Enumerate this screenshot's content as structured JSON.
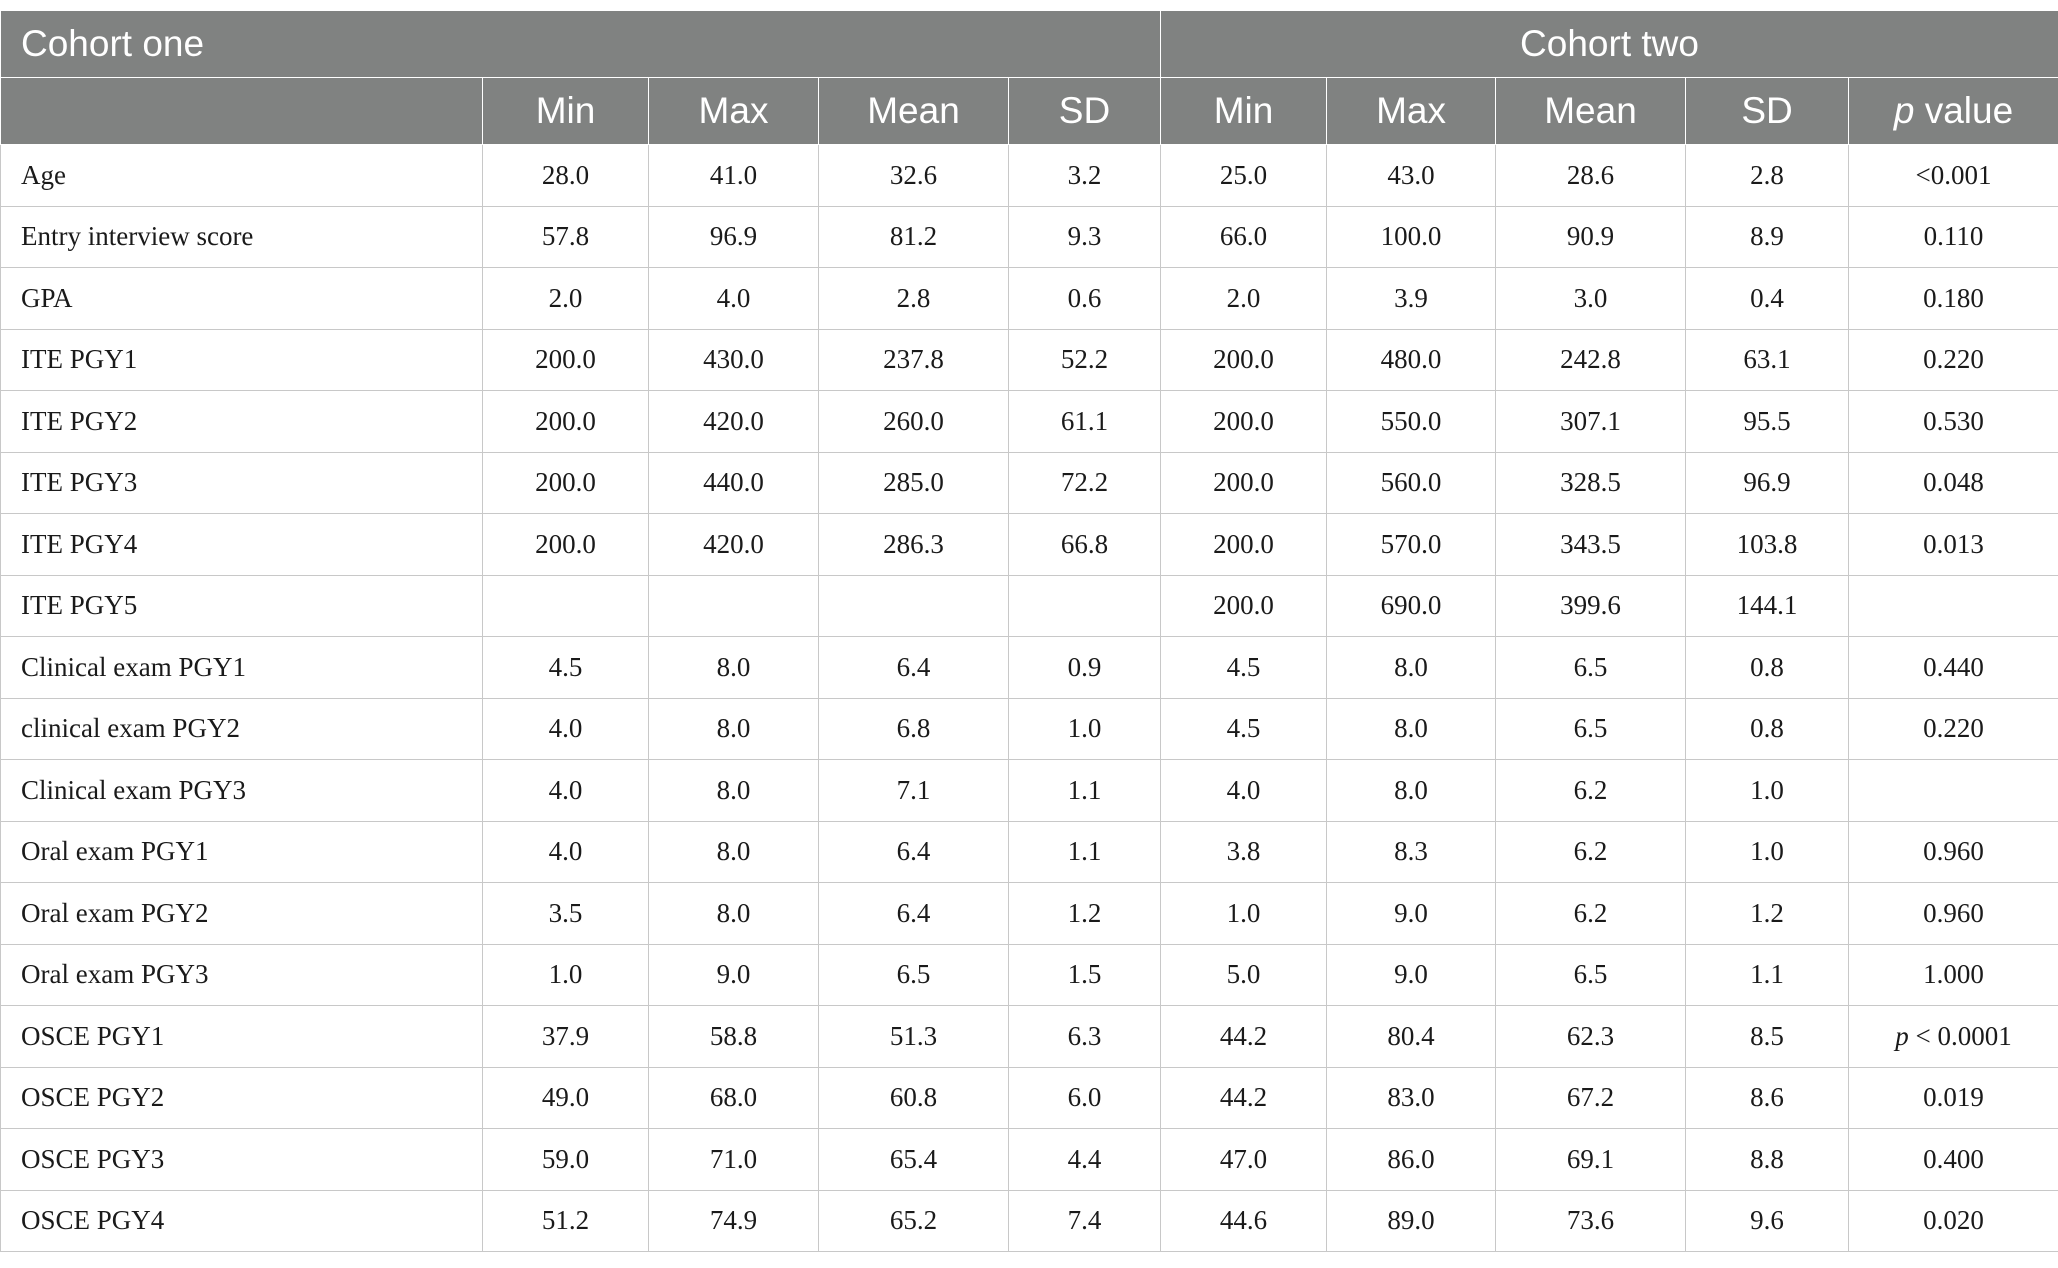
{
  "header": {
    "cohort_one": "Cohort one",
    "cohort_two": "Cohort two",
    "columns": [
      "Min",
      "Max",
      "Mean",
      "SD",
      "Min",
      "Max",
      "Mean",
      "SD"
    ],
    "p_value_prefix": "p",
    "p_value_suffix": " value"
  },
  "rows": [
    {
      "label": "Age",
      "values": [
        "28.0",
        "41.0",
        "32.6",
        "3.2",
        "25.0",
        "43.0",
        "28.6",
        "2.8"
      ],
      "p": "<0.001"
    },
    {
      "label": "Entry interview score",
      "values": [
        "57.8",
        "96.9",
        "81.2",
        "9.3",
        "66.0",
        "100.0",
        "90.9",
        "8.9"
      ],
      "p": "0.110"
    },
    {
      "label": "GPA",
      "values": [
        "2.0",
        "4.0",
        "2.8",
        "0.6",
        "2.0",
        "3.9",
        "3.0",
        "0.4"
      ],
      "p": "0.180"
    },
    {
      "label": "ITE PGY1",
      "values": [
        "200.0",
        "430.0",
        "237.8",
        "52.2",
        "200.0",
        "480.0",
        "242.8",
        "63.1"
      ],
      "p": "0.220"
    },
    {
      "label": "ITE PGY2",
      "values": [
        "200.0",
        "420.0",
        "260.0",
        "61.1",
        "200.0",
        "550.0",
        "307.1",
        "95.5"
      ],
      "p": "0.530"
    },
    {
      "label": "ITE PGY3",
      "values": [
        "200.0",
        "440.0",
        "285.0",
        "72.2",
        "200.0",
        "560.0",
        "328.5",
        "96.9"
      ],
      "p": "0.048"
    },
    {
      "label": "ITE PGY4",
      "values": [
        "200.0",
        "420.0",
        "286.3",
        "66.8",
        "200.0",
        "570.0",
        "343.5",
        "103.8"
      ],
      "p": "0.013"
    },
    {
      "label": "ITE PGY5",
      "values": [
        "",
        "",
        "",
        "",
        "200.0",
        "690.0",
        "399.6",
        "144.1"
      ],
      "p": ""
    },
    {
      "label": "Clinical exam PGY1",
      "values": [
        "4.5",
        "8.0",
        "6.4",
        "0.9",
        "4.5",
        "8.0",
        "6.5",
        "0.8"
      ],
      "p": "0.440"
    },
    {
      "label": "clinical exam PGY2",
      "values": [
        "4.0",
        "8.0",
        "6.8",
        "1.0",
        "4.5",
        "8.0",
        "6.5",
        "0.8"
      ],
      "p": "0.220"
    },
    {
      "label": "Clinical exam PGY3",
      "values": [
        "4.0",
        "8.0",
        "7.1",
        "1.1",
        "4.0",
        "8.0",
        "6.2",
        "1.0"
      ],
      "p": ""
    },
    {
      "label": "Oral exam PGY1",
      "values": [
        "4.0",
        "8.0",
        "6.4",
        "1.1",
        "3.8",
        "8.3",
        "6.2",
        "1.0"
      ],
      "p": "0.960"
    },
    {
      "label": "Oral exam PGY2",
      "values": [
        "3.5",
        "8.0",
        "6.4",
        "1.2",
        "1.0",
        "9.0",
        "6.2",
        "1.2"
      ],
      "p": "0.960"
    },
    {
      "label": "Oral exam PGY3",
      "values": [
        "1.0",
        "9.0",
        "6.5",
        "1.5",
        "5.0",
        "9.0",
        "6.5",
        "1.1"
      ],
      "p": "1.000"
    },
    {
      "label": "OSCE PGY1",
      "values": [
        "37.9",
        "58.8",
        "51.3",
        "6.3",
        "44.2",
        "80.4",
        "62.3",
        "8.5"
      ],
      "p_prefix": "p",
      "p": " < 0.0001"
    },
    {
      "label": "OSCE PGY2",
      "values": [
        "49.0",
        "68.0",
        "60.8",
        "6.0",
        "44.2",
        "83.0",
        "67.2",
        "8.6"
      ],
      "p": "0.019"
    },
    {
      "label": "OSCE PGY3",
      "values": [
        "59.0",
        "71.0",
        "65.4",
        "4.4",
        "47.0",
        "86.0",
        "69.1",
        "8.8"
      ],
      "p": "0.400"
    },
    {
      "label": "OSCE PGY4",
      "values": [
        "51.2",
        "74.9",
        "65.2",
        "7.4",
        "44.6",
        "89.0",
        "73.6",
        "9.6"
      ],
      "p": "0.020"
    }
  ]
}
